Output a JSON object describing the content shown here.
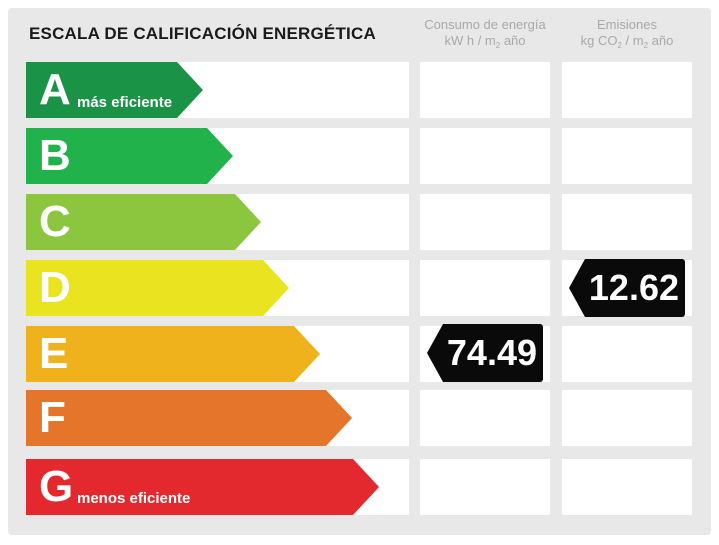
{
  "title": "ESCALA DE CALIFICACIÓN ENERGÉTICA",
  "columns": {
    "consumo": {
      "line1": "Consumo de energía",
      "line2_a": "kW h / m",
      "line2_sub": "2",
      "line2_b": " año"
    },
    "emisiones": {
      "line1": "Emisiones",
      "line2_a": "kg CO",
      "line2_sub1": "2",
      "line2_mid": " / m",
      "line2_sub2": "2",
      "line2_b": " año"
    }
  },
  "grades": [
    {
      "letter": "A",
      "label": "más eficiente",
      "color": "#1a9347"
    },
    {
      "letter": "B",
      "label": "",
      "color": "#21b24b"
    },
    {
      "letter": "C",
      "label": "",
      "color": "#8cc63f"
    },
    {
      "letter": "D",
      "label": "",
      "color": "#e9e41f"
    },
    {
      "letter": "E",
      "label": "",
      "color": "#f0b21c"
    },
    {
      "letter": "F",
      "label": "",
      "color": "#e5752a"
    },
    {
      "letter": "G",
      "label": "menos eficiente",
      "color": "#e3282e"
    }
  ],
  "consumo": {
    "grade": "E",
    "value": "74.49"
  },
  "emisiones": {
    "grade": "D",
    "value": "12.62"
  }
}
